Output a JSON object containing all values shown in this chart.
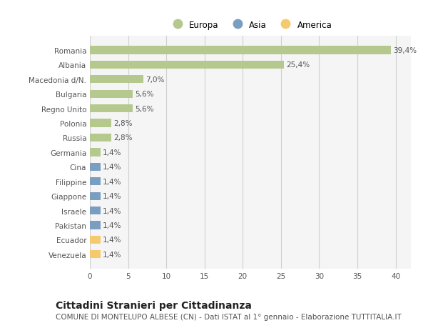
{
  "categories": [
    "Romania",
    "Albania",
    "Macedonia d/N.",
    "Bulgaria",
    "Regno Unito",
    "Polonia",
    "Russia",
    "Germania",
    "Cina",
    "Filippine",
    "Giappone",
    "Israele",
    "Pakistan",
    "Ecuador",
    "Venezuela"
  ],
  "values": [
    39.4,
    25.4,
    7.0,
    5.6,
    5.6,
    2.8,
    2.8,
    1.4,
    1.4,
    1.4,
    1.4,
    1.4,
    1.4,
    1.4,
    1.4
  ],
  "labels": [
    "39,4%",
    "25,4%",
    "7,0%",
    "5,6%",
    "5,6%",
    "2,8%",
    "2,8%",
    "1,4%",
    "1,4%",
    "1,4%",
    "1,4%",
    "1,4%",
    "1,4%",
    "1,4%",
    "1,4%"
  ],
  "continents": [
    "Europa",
    "Europa",
    "Europa",
    "Europa",
    "Europa",
    "Europa",
    "Europa",
    "Europa",
    "Asia",
    "Asia",
    "Asia",
    "Asia",
    "Asia",
    "America",
    "America"
  ],
  "colors": {
    "Europa": "#b5c98e",
    "Asia": "#7a9ec0",
    "America": "#f5ca6e"
  },
  "legend_items": [
    "Europa",
    "Asia",
    "America"
  ],
  "legend_colors": [
    "#b5c98e",
    "#7a9ec0",
    "#f5ca6e"
  ],
  "xlim": [
    0,
    42
  ],
  "xticks": [
    0,
    5,
    10,
    15,
    20,
    25,
    30,
    35,
    40
  ],
  "title": "Cittadini Stranieri per Cittadinanza",
  "subtitle": "COMUNE DI MONTELUPO ALBESE (CN) - Dati ISTAT al 1° gennaio - Elaborazione TUTTITALIA.IT",
  "background_color": "#ffffff",
  "plot_bg_color": "#f5f5f5",
  "grid_color": "#d0d0d0",
  "bar_height": 0.55,
  "label_fontsize": 7.5,
  "tick_fontsize": 7.5,
  "title_fontsize": 10,
  "subtitle_fontsize": 7.5
}
